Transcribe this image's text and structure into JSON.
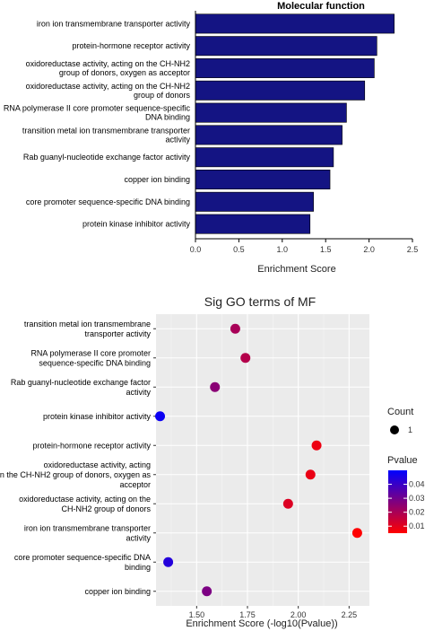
{
  "chart_data": [
    {
      "type": "bar",
      "title": "Molecular function",
      "xlabel": "Enrichment Score",
      "xlim": [
        0,
        2.5
      ],
      "xticks": [
        "0.0",
        "0.5",
        "1.0",
        "1.5",
        "2.0",
        "2.5"
      ],
      "color": "#141483",
      "categories": [
        [
          "iron ion transmembrane transporter activity"
        ],
        [
          "protein-hormone receptor activity"
        ],
        [
          "oxidoreductase activity, acting on the CH-NH2",
          "group of donors, oxygen as acceptor"
        ],
        [
          "oxidoreductase activity, acting on the CH-NH2",
          "group of donors"
        ],
        [
          "RNA polymerase II core promoter sequence-specific",
          "DNA binding"
        ],
        [
          "transition metal ion transmembrane transporter",
          "activity"
        ],
        [
          "Rab guanyl-nucleotide exchange factor activity"
        ],
        [
          "copper ion binding"
        ],
        [
          "core promoter sequence-specific DNA binding"
        ],
        [
          "protein kinase inhibitor activity"
        ]
      ],
      "values": [
        2.29,
        2.09,
        2.06,
        1.95,
        1.74,
        1.69,
        1.59,
        1.55,
        1.36,
        1.32
      ]
    },
    {
      "type": "scatter",
      "title": "Sig GO terms of MF",
      "xlabel": "Enrichment Score (-log10(Pvalue))",
      "xlim": [
        1.3,
        2.35
      ],
      "xticks": [
        "1.50",
        "1.75",
        "2.00",
        "2.25"
      ],
      "xtick_values": [
        1.5,
        1.75,
        2.0,
        2.25
      ],
      "categories": [
        [
          "transition metal ion transmembrane",
          "transporter activity"
        ],
        [
          "RNA polymerase II core promoter",
          "sequence-specific DNA binding"
        ],
        [
          "Rab guanyl-nucleotide exchange factor",
          "activity"
        ],
        [
          "protein kinase inhibitor activity"
        ],
        [
          "protein-hormone receptor activity"
        ],
        [
          "oxidoreductase activity, acting",
          "on the CH-NH2 group of donors, oxygen as",
          "acceptor"
        ],
        [
          "oxidoreductase activity, acting on the",
          "CH-NH2 group of donors"
        ],
        [
          "iron ion transmembrane transporter",
          "activity"
        ],
        [
          "core promoter sequence-specific DNA",
          "binding"
        ],
        [
          "copper ion binding"
        ]
      ],
      "x": [
        1.69,
        1.74,
        1.59,
        1.32,
        2.09,
        2.06,
        1.95,
        2.29,
        1.36,
        1.55
      ],
      "pvalue": [
        0.0204,
        0.0182,
        0.0257,
        0.0479,
        0.0081,
        0.0087,
        0.0112,
        0.0051,
        0.0437,
        0.0282
      ],
      "count": [
        1,
        1,
        1,
        1,
        1,
        1,
        1,
        1,
        1,
        1
      ],
      "legend": {
        "count_title": "Count",
        "count_label": "1",
        "pvalue_title": "Pvalue",
        "pvalue_ticks": [
          "0.04",
          "0.03",
          "0.02",
          "0.01"
        ],
        "pvalue_tick_values": [
          0.04,
          0.03,
          0.02,
          0.01
        ],
        "pvalue_range": [
          0.005,
          0.05
        ],
        "low_color": "#ff0000",
        "high_color": "#0000ff"
      },
      "panel_color": "#ebebeb"
    }
  ]
}
